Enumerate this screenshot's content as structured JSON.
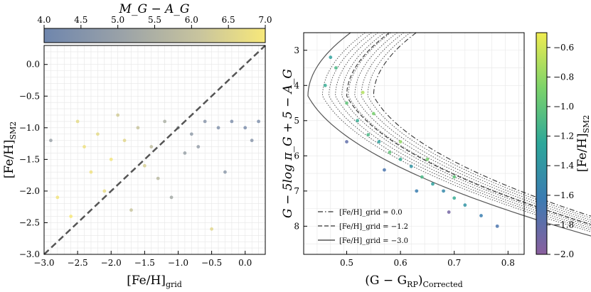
{
  "chart_data": [
    {
      "type": "scatter",
      "panel": "left",
      "xlabel": "[Fe/H]_grid",
      "ylabel": "[Fe/H]_SM2",
      "xlim": [
        -3.0,
        0.3
      ],
      "ylim": [
        -3.0,
        0.3
      ],
      "x_ticks": [
        "−3.0",
        "−2.5",
        "−2.0",
        "−1.5",
        "−1.0",
        "−0.5",
        "0.0"
      ],
      "y_ticks": [
        "−3.0",
        "−2.5",
        "−2.0",
        "−1.5",
        "−1.0",
        "−0.5",
        "0.0"
      ],
      "grid": true,
      "reference_line": {
        "style": "dashed",
        "from": [
          -3.0,
          -3.0
        ],
        "to": [
          0.3,
          0.3
        ]
      },
      "colorbar": {
        "label": "M_G − A_G",
        "position": "top",
        "range": [
          4.0,
          7.0
        ],
        "ticks": [
          "4.0",
          "4.5",
          "5.0",
          "5.5",
          "6.0",
          "6.5",
          "7.0"
        ],
        "colors": [
          "#6f86ad",
          "#9aa2a8",
          "#c8c49e",
          "#f7e87a"
        ]
      },
      "series": [
        {
          "values": [
            {
              "x": -2.4,
              "y": -1.3,
              "c": 6.8
            },
            {
              "x": -2.2,
              "y": -1.1,
              "c": 6.6
            },
            {
              "x": -2.0,
              "y": -1.5,
              "c": 6.9
            },
            {
              "x": -1.8,
              "y": -1.2,
              "c": 6.5
            },
            {
              "x": -1.6,
              "y": -1.0,
              "c": 6.0
            },
            {
              "x": -1.4,
              "y": -1.3,
              "c": 5.8
            },
            {
              "x": -1.2,
              "y": -0.9,
              "c": 5.4
            },
            {
              "x": -1.0,
              "y": -1.0,
              "c": 5.1
            },
            {
              "x": -0.8,
              "y": -1.1,
              "c": 4.8
            },
            {
              "x": -0.6,
              "y": -0.9,
              "c": 4.6
            },
            {
              "x": -0.4,
              "y": -1.0,
              "c": 4.5
            },
            {
              "x": -0.2,
              "y": -0.9,
              "c": 4.4
            },
            {
              "x": 0.0,
              "y": -1.0,
              "c": 4.3
            },
            {
              "x": 0.2,
              "y": -0.9,
              "c": 4.4
            },
            {
              "x": -2.8,
              "y": -2.1,
              "c": 6.9
            },
            {
              "x": -2.6,
              "y": -2.4,
              "c": 7.0
            },
            {
              "x": -2.1,
              "y": -2.0,
              "c": 6.7
            },
            {
              "x": -1.7,
              "y": -2.3,
              "c": 6.0
            },
            {
              "x": -1.1,
              "y": -2.1,
              "c": 5.2
            },
            {
              "x": -0.5,
              "y": -2.6,
              "c": 6.5
            },
            {
              "x": -0.3,
              "y": -1.7,
              "c": 4.7
            },
            {
              "x": -2.3,
              "y": -1.7,
              "c": 6.8
            },
            {
              "x": -1.9,
              "y": -0.8,
              "c": 6.2
            },
            {
              "x": -0.9,
              "y": -1.4,
              "c": 5.0
            },
            {
              "x": -1.5,
              "y": -1.6,
              "c": 6.3
            },
            {
              "x": -2.5,
              "y": -0.9,
              "c": 6.6
            },
            {
              "x": -0.7,
              "y": -1.3,
              "c": 4.9
            },
            {
              "x": 0.1,
              "y": -1.2,
              "c": 4.6
            },
            {
              "x": -1.3,
              "y": -1.8,
              "c": 5.7
            },
            {
              "x": -2.9,
              "y": -1.2,
              "c": 5.0
            }
          ]
        }
      ]
    },
    {
      "type": "scatter",
      "panel": "right",
      "xlabel": "(G − G_RP)_Corrected",
      "ylabel": "G − 5log π_G + 5 − A_G",
      "xlim": [
        0.42,
        0.83
      ],
      "ylim": [
        8.8,
        2.5
      ],
      "x_ticks": [
        "0.5",
        "0.6",
        "0.7",
        "0.8"
      ],
      "y_ticks": [
        "3",
        "4",
        "5",
        "6",
        "7",
        "8"
      ],
      "grid": true,
      "colorbar": {
        "label": "[Fe/H]_SM2",
        "position": "right",
        "range": [
          -2.0,
          -0.5
        ],
        "ticks": [
          "−0.6",
          "−0.8",
          "−1.0",
          "−1.2",
          "−1.4",
          "−1.6",
          "−1.8",
          "−2.0"
        ],
        "colors": [
          "#8a5f9e",
          "#3b7bb2",
          "#2da79a",
          "#7cd36a",
          "#f0ec50"
        ]
      },
      "legend": {
        "placement": "bottom-left",
        "entries": [
          {
            "label": "[Fe/H]_grid = 0.0",
            "style": "dashdot"
          },
          {
            "label": "[Fe/H]_grid = −1.2",
            "style": "dashed"
          },
          {
            "label": "[Fe/H]_grid = −3.0",
            "style": "solid"
          }
        ]
      },
      "series": [
        {
          "values": [
            {
              "x": 0.47,
              "y": 3.2,
              "c": -1.3
            },
            {
              "x": 0.48,
              "y": 3.5,
              "c": -1.1
            },
            {
              "x": 0.5,
              "y": 4.5,
              "c": -1.0
            },
            {
              "x": 0.52,
              "y": 5.0,
              "c": -1.2
            },
            {
              "x": 0.54,
              "y": 5.4,
              "c": -1.1
            },
            {
              "x": 0.56,
              "y": 5.6,
              "c": -1.3
            },
            {
              "x": 0.58,
              "y": 5.9,
              "c": -1.0
            },
            {
              "x": 0.6,
              "y": 6.1,
              "c": -1.2
            },
            {
              "x": 0.62,
              "y": 6.3,
              "c": -1.4
            },
            {
              "x": 0.64,
              "y": 6.6,
              "c": -1.1
            },
            {
              "x": 0.66,
              "y": 6.8,
              "c": -1.3
            },
            {
              "x": 0.68,
              "y": 7.0,
              "c": -1.5
            },
            {
              "x": 0.7,
              "y": 7.2,
              "c": -1.2
            },
            {
              "x": 0.72,
              "y": 7.4,
              "c": -1.4
            },
            {
              "x": 0.75,
              "y": 7.7,
              "c": -1.6
            },
            {
              "x": 0.78,
              "y": 8.0,
              "c": -1.7
            },
            {
              "x": 0.55,
              "y": 4.8,
              "c": -0.9
            },
            {
              "x": 0.6,
              "y": 5.6,
              "c": -0.8
            },
            {
              "x": 0.65,
              "y": 6.1,
              "c": -0.9
            },
            {
              "x": 0.7,
              "y": 6.6,
              "c": -1.0
            },
            {
              "x": 0.5,
              "y": 5.6,
              "c": -1.8
            },
            {
              "x": 0.57,
              "y": 6.4,
              "c": -1.7
            },
            {
              "x": 0.63,
              "y": 7.0,
              "c": -1.6
            },
            {
              "x": 0.69,
              "y": 7.6,
              "c": -1.9
            },
            {
              "x": 0.53,
              "y": 4.2,
              "c": -0.7
            },
            {
              "x": 0.46,
              "y": 4.0,
              "c": -1.2
            }
          ]
        }
      ]
    }
  ],
  "display": {
    "left_colorbar_label": "M_G − A_G",
    "left_xlabel_main": "[Fe/H]",
    "left_xlabel_sub": "grid",
    "left_ylabel_main": "[Fe/H]",
    "left_ylabel_sub": "SM2",
    "right_xlabel_main": "(G − G",
    "right_xlabel_rp": "RP",
    "right_xlabel_close": ")",
    "right_xlabel_sub": "Corrected",
    "right_ylabel": "G − 5log π_G + 5 − A_G",
    "right_cbar_label_main": "[Fe/H]",
    "right_cbar_label_sub": "SM2"
  }
}
